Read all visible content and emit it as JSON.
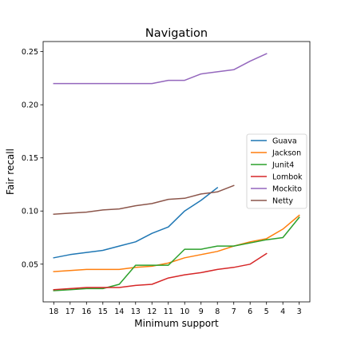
{
  "chart_data": {
    "type": "line",
    "title": "Navigation",
    "xlabel": "Minimum support",
    "ylabel": "Fair recall",
    "x": [
      18,
      17,
      16,
      15,
      14,
      13,
      12,
      11,
      10,
      9,
      8,
      7,
      6,
      5,
      4,
      3
    ],
    "x_tick_labels": [
      "18",
      "17",
      "16",
      "15",
      "14",
      "13",
      "12",
      "11",
      "10",
      "9",
      "8",
      "7",
      "6",
      "5",
      "4",
      "3"
    ],
    "x_axis_reversed": true,
    "xlim": [
      18.65,
      2.35
    ],
    "ylim": [
      0.0145,
      0.2595
    ],
    "y_ticks": [
      0.05,
      0.1,
      0.15,
      0.2,
      0.25
    ],
    "y_tick_labels": [
      "0.05",
      "0.10",
      "0.15",
      "0.20",
      "0.25"
    ],
    "grid": false,
    "legend_position": "center-right",
    "series": [
      {
        "name": "Guava",
        "color": "#1f77b4",
        "x": [
          18,
          17,
          16,
          15,
          14,
          13,
          12,
          11,
          10,
          9,
          8
        ],
        "values": [
          0.056,
          0.059,
          0.061,
          0.063,
          0.067,
          0.071,
          0.079,
          0.085,
          0.1,
          0.11,
          0.122
        ]
      },
      {
        "name": "Jackson",
        "color": "#ff7f0e",
        "x": [
          18,
          17,
          16,
          15,
          14,
          13,
          12,
          11,
          10,
          9,
          8,
          7,
          6,
          5,
          4,
          3
        ],
        "values": [
          0.043,
          0.044,
          0.045,
          0.045,
          0.045,
          0.047,
          0.048,
          0.051,
          0.056,
          0.059,
          0.062,
          0.067,
          0.071,
          0.074,
          0.083,
          0.096
        ]
      },
      {
        "name": "Junit4",
        "color": "#2ca02c",
        "x": [
          18,
          17,
          16,
          15,
          14,
          13,
          12,
          11,
          10,
          9,
          8,
          7,
          6,
          5,
          4,
          3
        ],
        "values": [
          0.025,
          0.026,
          0.027,
          0.027,
          0.031,
          0.049,
          0.049,
          0.049,
          0.064,
          0.064,
          0.067,
          0.067,
          0.07,
          0.073,
          0.075,
          0.094
        ]
      },
      {
        "name": "Lombok",
        "color": "#d62728",
        "x": [
          18,
          17,
          16,
          15,
          14,
          13,
          12,
          11,
          10,
          9,
          8,
          7,
          6,
          5
        ],
        "values": [
          0.026,
          0.027,
          0.028,
          0.028,
          0.028,
          0.03,
          0.031,
          0.037,
          0.04,
          0.042,
          0.045,
          0.047,
          0.05,
          0.06
        ]
      },
      {
        "name": "Mockito",
        "color": "#9467bd",
        "x": [
          18,
          17,
          16,
          15,
          14,
          13,
          12,
          11,
          10,
          9,
          8,
          7,
          6,
          5
        ],
        "values": [
          0.22,
          0.22,
          0.22,
          0.22,
          0.22,
          0.22,
          0.22,
          0.223,
          0.223,
          0.229,
          0.231,
          0.233,
          0.241,
          0.248
        ]
      },
      {
        "name": "Netty",
        "color": "#8c564b",
        "x": [
          18,
          17,
          16,
          15,
          14,
          13,
          12,
          11,
          10,
          9,
          8,
          7
        ],
        "values": [
          0.097,
          0.098,
          0.099,
          0.101,
          0.102,
          0.105,
          0.107,
          0.111,
          0.112,
          0.116,
          0.118,
          0.124
        ]
      }
    ]
  }
}
